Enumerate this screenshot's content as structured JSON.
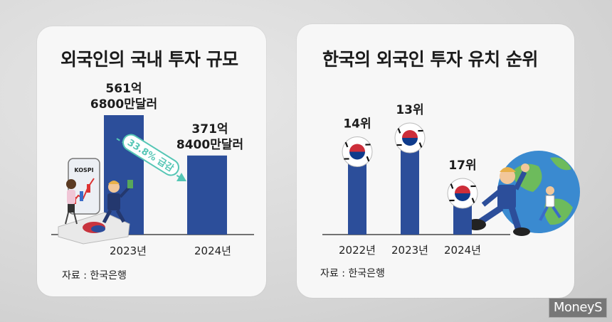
{
  "left_card": {
    "title": "외국인의 국내 투자 규모",
    "source": "자료 : 한국은행"
  },
  "right_card": {
    "title": "한국의 외국인 투자 유치 순위",
    "source": "자료 : 한국은행"
  },
  "watermark": "MoneyS",
  "colors": {
    "bar": "#2c4e9a",
    "accent": "#55c6b5"
  },
  "chart_data": [
    {
      "type": "bar",
      "title": "외국인의 국내 투자 규모",
      "categories": [
        "2023년",
        "2024년"
      ],
      "values": [
        561.68,
        371.84
      ],
      "unit": "억 달러",
      "value_labels": [
        [
          "561억",
          "6800만달러"
        ],
        [
          "371억",
          "8400만달러"
        ]
      ],
      "annotation": "33.8% 급감",
      "inset_label": "KOSPI",
      "ylim": [
        0,
        700
      ],
      "xlabel": "",
      "ylabel": ""
    },
    {
      "type": "bar",
      "title": "한국의 외국인 투자 유치 순위",
      "categories": [
        "2022년",
        "2023년",
        "2024년"
      ],
      "values": [
        14,
        13,
        17
      ],
      "unit": "위",
      "value_labels": [
        "14위",
        "13위",
        "17위"
      ],
      "xlabel": "",
      "ylabel": ""
    }
  ]
}
